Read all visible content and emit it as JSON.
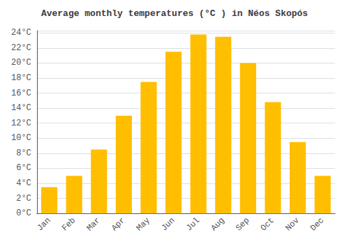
{
  "chart_data": {
    "type": "bar",
    "title": "Average monthly temperatures (°C ) in Néos Skopós",
    "categories": [
      "Jan",
      "Feb",
      "Mar",
      "Apr",
      "May",
      "Jun",
      "Jul",
      "Aug",
      "Sep",
      "Oct",
      "Nov",
      "Dec"
    ],
    "values": [
      3.5,
      5.0,
      8.5,
      13.0,
      17.5,
      21.5,
      23.8,
      23.5,
      20.0,
      14.8,
      9.5,
      5.0
    ],
    "color": "#FFBE00",
    "ylim": [
      0,
      24.3
    ],
    "yticks": [
      {
        "value": 0,
        "label": "0°C"
      },
      {
        "value": 2,
        "label": "2°C"
      },
      {
        "value": 4,
        "label": "4°C"
      },
      {
        "value": 6,
        "label": "6°C"
      },
      {
        "value": 8,
        "label": "8°C"
      },
      {
        "value": 10,
        "label": "10°C"
      },
      {
        "value": 12,
        "label": "12°C"
      },
      {
        "value": 14,
        "label": "14°C"
      },
      {
        "value": 16,
        "label": "16°C"
      },
      {
        "value": 18,
        "label": "18°C"
      },
      {
        "value": 20,
        "label": "20°C"
      },
      {
        "value": 22,
        "label": "22°C"
      },
      {
        "value": 24,
        "label": "24°C"
      }
    ],
    "grid": true
  }
}
